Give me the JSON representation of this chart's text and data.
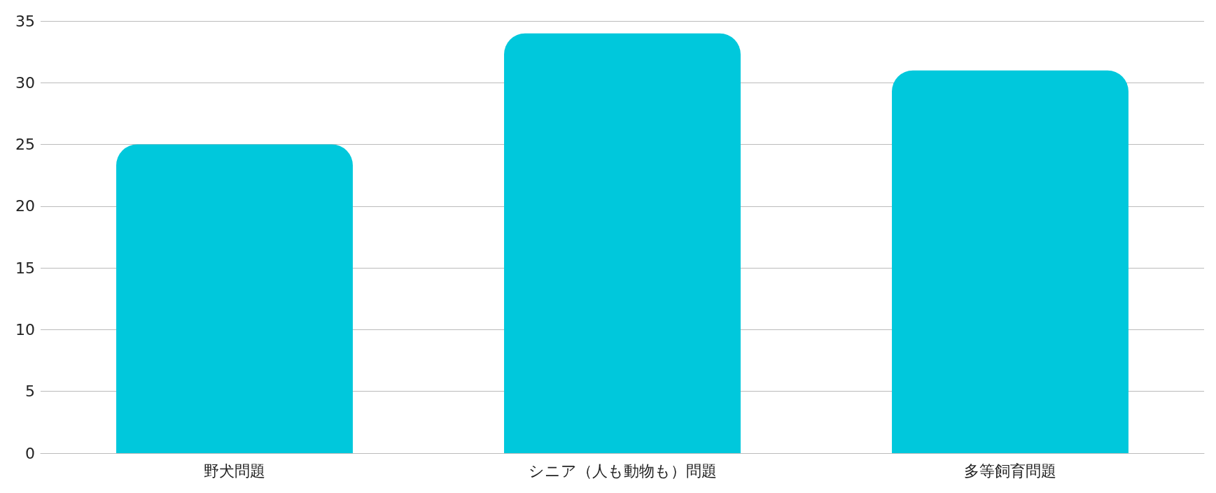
{
  "chart_data": {
    "type": "bar",
    "categories": [
      "野犬問題",
      "シニア（人も動物も）問題",
      "多等飼育問題"
    ],
    "values": [
      25,
      34,
      31
    ],
    "color": "#00c8dc",
    "ylim": [
      0,
      35
    ],
    "yticks": [
      0,
      5,
      10,
      15,
      20,
      25,
      30,
      35
    ],
    "grid": "y"
  }
}
